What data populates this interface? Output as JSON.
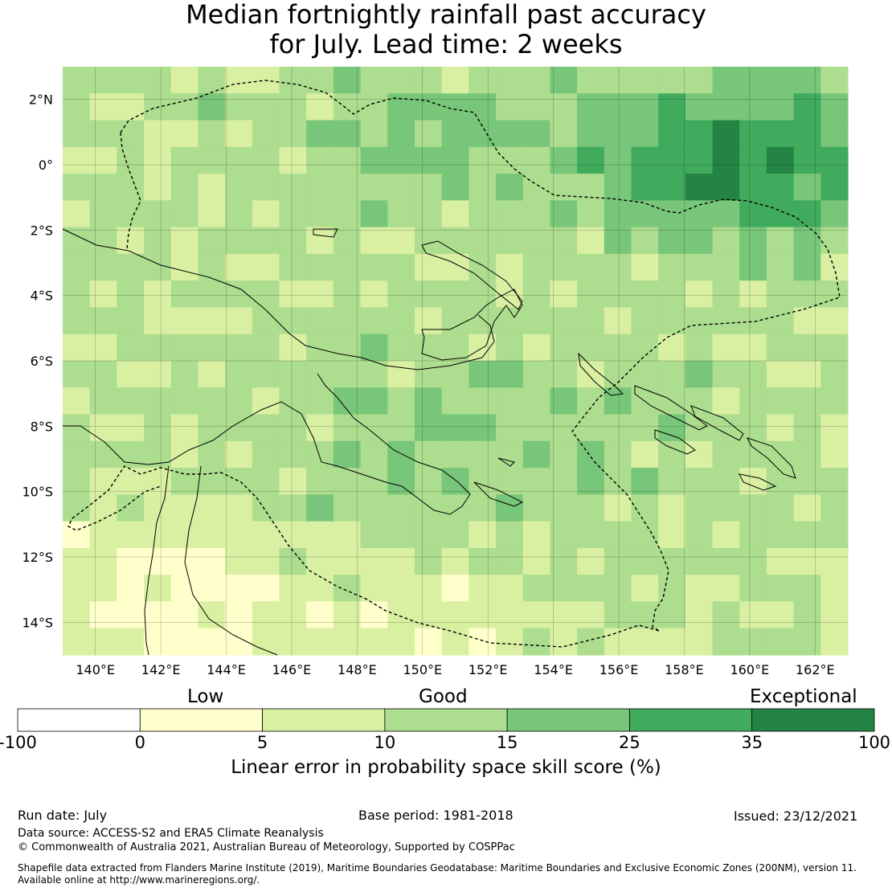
{
  "title": {
    "line1": "Median fortnightly rainfall past accuracy",
    "line2": "for July. Lead time: 2 weeks"
  },
  "map": {
    "lon_range": [
      139,
      163
    ],
    "lat_range": [
      -15,
      3
    ],
    "lon_ticks": [
      {
        "value": 140,
        "label": "140°E"
      },
      {
        "value": 142,
        "label": "142°E"
      },
      {
        "value": 144,
        "label": "144°E"
      },
      {
        "value": 146,
        "label": "146°E"
      },
      {
        "value": 148,
        "label": "148°E"
      },
      {
        "value": 150,
        "label": "150°E"
      },
      {
        "value": 152,
        "label": "152°E"
      },
      {
        "value": 154,
        "label": "154°E"
      },
      {
        "value": 156,
        "label": "156°E"
      },
      {
        "value": 158,
        "label": "158°E"
      },
      {
        "value": 160,
        "label": "160°E"
      },
      {
        "value": 162,
        "label": "162°E"
      }
    ],
    "lat_ticks": [
      {
        "value": 2,
        "label": "2°N"
      },
      {
        "value": 0,
        "label": "0°"
      },
      {
        "value": -2,
        "label": "2°S"
      },
      {
        "value": -4,
        "label": "4°S"
      },
      {
        "value": -6,
        "label": "6°S"
      },
      {
        "value": -8,
        "label": "8°S"
      },
      {
        "value": -10,
        "label": "10°S"
      },
      {
        "value": -12,
        "label": "12°S"
      },
      {
        "value": -14,
        "label": "14°S"
      }
    ],
    "grid": true
  },
  "legend": {
    "category_low": "Low",
    "category_good": "Good",
    "category_exceptional": "Exceptional",
    "ticks": [
      "-100",
      "0",
      "5",
      "10",
      "15",
      "25",
      "35",
      "100"
    ],
    "bins": [
      {
        "from": -100,
        "to": 0,
        "color": "#ffffff"
      },
      {
        "from": 0,
        "to": 5,
        "color": "#ffffcc"
      },
      {
        "from": 5,
        "to": 10,
        "color": "#d9f0a3"
      },
      {
        "from": 10,
        "to": 15,
        "color": "#addd8e"
      },
      {
        "from": 15,
        "to": 25,
        "color": "#78c679"
      },
      {
        "from": 25,
        "to": 35,
        "color": "#41ab5d"
      },
      {
        "from": 35,
        "to": 100,
        "color": "#238443"
      }
    ],
    "title": "Linear error in probability space skill score (%)"
  },
  "footer": {
    "run_date": "Run date: July",
    "base_period": "Base period: 1981-2018",
    "issued": "Issued: 23/12/2021",
    "data_source": "Data source: ACCESS-S2 and ERA5 Climate Reanalysis",
    "copyright": "© Commonwealth of Australia 2021, Australian Bureau of Meteorology, Supported by COSPPac",
    "shapefile_line1": "Shapefile data extracted from Flanders Marine Institute (2019), Maritime Boundaries Geodatabase: Maritime Boundaries and Exclusive Economic Zones (200NM), version 11.",
    "shapefile_line2": "Available online at http://www.marineregions.org/."
  },
  "colors": {
    "lowest": "#ffffff",
    "low": "#ffffcc",
    "exceptional": "#238443"
  }
}
